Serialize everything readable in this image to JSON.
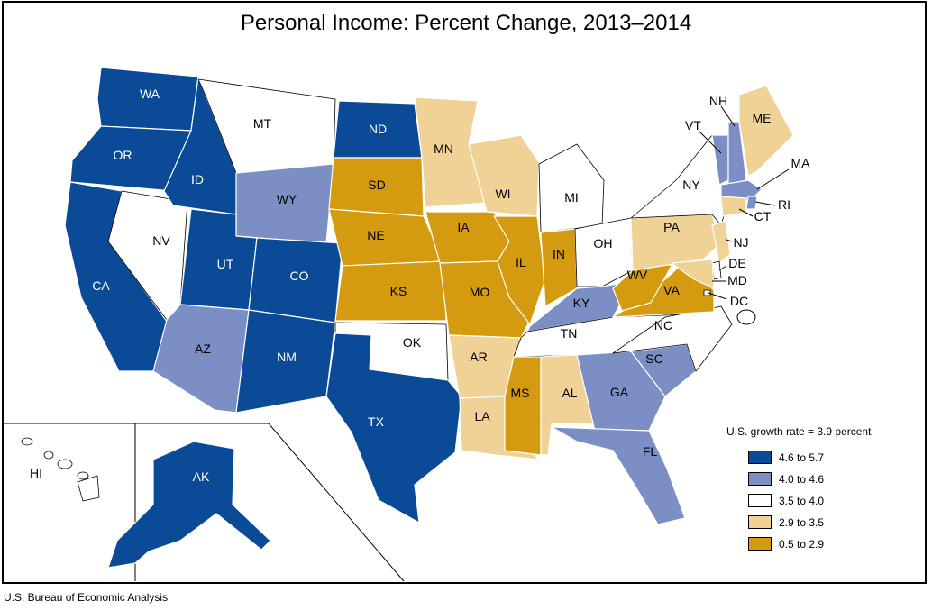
{
  "title": "Personal Income: Percent Change, 2013–2014",
  "source": "U.S. Bureau of Economic Analysis",
  "colors": {
    "c1": "#0a4a96",
    "c2": "#7b8fc4",
    "c3": "#ffffff",
    "c4": "#f0d296",
    "c5": "#d49a10",
    "border": "#ffffff",
    "outline": "#000000"
  },
  "legend": {
    "title": "U.S. growth rate = 3.9 percent",
    "items": [
      {
        "label": "4.6 to 5.7",
        "color": "#0a4a96"
      },
      {
        "label": "4.0 to 4.6",
        "color": "#7b8fc4"
      },
      {
        "label": "3.5 to 4.0",
        "color": "#ffffff"
      },
      {
        "label": "2.9 to 3.5",
        "color": "#f0d296"
      },
      {
        "label": "0.5 to 2.9",
        "color": "#d49a10"
      }
    ]
  },
  "states": {
    "WA": {
      "label": "WA",
      "class": "4.6 to 5.7"
    },
    "OR": {
      "label": "OR",
      "class": "4.6 to 5.7"
    },
    "CA": {
      "label": "CA",
      "class": "4.6 to 5.7"
    },
    "ID": {
      "label": "ID",
      "class": "4.6 to 5.7"
    },
    "NV": {
      "label": "NV",
      "class": "3.5 to 4.0"
    },
    "MT": {
      "label": "MT",
      "class": "3.5 to 4.0"
    },
    "WY": {
      "label": "WY",
      "class": "4.0 to 4.6"
    },
    "UT": {
      "label": "UT",
      "class": "4.6 to 5.7"
    },
    "CO": {
      "label": "CO",
      "class": "4.6 to 5.7"
    },
    "AZ": {
      "label": "AZ",
      "class": "4.0 to 4.6"
    },
    "NM": {
      "label": "NM",
      "class": "4.6 to 5.7"
    },
    "ND": {
      "label": "ND",
      "class": "4.6 to 5.7"
    },
    "SD": {
      "label": "SD",
      "class": "0.5 to 2.9"
    },
    "NE": {
      "label": "NE",
      "class": "0.5 to 2.9"
    },
    "KS": {
      "label": "KS",
      "class": "0.5 to 2.9"
    },
    "OK": {
      "label": "OK",
      "class": "3.5 to 4.0"
    },
    "TX": {
      "label": "TX",
      "class": "4.6 to 5.7"
    },
    "MN": {
      "label": "MN",
      "class": "2.9 to 3.5"
    },
    "IA": {
      "label": "IA",
      "class": "0.5 to 2.9"
    },
    "MO": {
      "label": "MO",
      "class": "0.5 to 2.9"
    },
    "AR": {
      "label": "AR",
      "class": "2.9 to 3.5"
    },
    "LA": {
      "label": "LA",
      "class": "2.9 to 3.5"
    },
    "WI": {
      "label": "WI",
      "class": "2.9 to 3.5"
    },
    "IL": {
      "label": "IL",
      "class": "0.5 to 2.9"
    },
    "MI": {
      "label": "MI",
      "class": "3.5 to 4.0"
    },
    "IN": {
      "label": "IN",
      "class": "0.5 to 2.9"
    },
    "OH": {
      "label": "OH",
      "class": "3.5 to 4.0"
    },
    "KY": {
      "label": "KY",
      "class": "4.0 to 4.6"
    },
    "TN": {
      "label": "TN",
      "class": "3.5 to 4.0"
    },
    "MS": {
      "label": "MS",
      "class": "0.5 to 2.9"
    },
    "AL": {
      "label": "AL",
      "class": "2.9 to 3.5"
    },
    "GA": {
      "label": "GA",
      "class": "4.0 to 4.6"
    },
    "FL": {
      "label": "FL",
      "class": "4.0 to 4.6"
    },
    "SC": {
      "label": "SC",
      "class": "4.0 to 4.6"
    },
    "NC": {
      "label": "NC",
      "class": "3.5 to 4.0"
    },
    "VA": {
      "label": "VA",
      "class": "0.5 to 2.9"
    },
    "WV": {
      "label": "WV",
      "class": "0.5 to 2.9"
    },
    "PA": {
      "label": "PA",
      "class": "2.9 to 3.5"
    },
    "NY": {
      "label": "NY",
      "class": "3.5 to 4.0"
    },
    "VT": {
      "label": "VT",
      "class": "4.0 to 4.6"
    },
    "NH": {
      "label": "NH",
      "class": "4.0 to 4.6"
    },
    "ME": {
      "label": "ME",
      "class": "2.9 to 3.5"
    },
    "MA": {
      "label": "MA",
      "class": "4.0 to 4.6"
    },
    "RI": {
      "label": "RI",
      "class": "4.0 to 4.6"
    },
    "CT": {
      "label": "CT",
      "class": "2.9 to 3.5"
    },
    "NJ": {
      "label": "NJ",
      "class": "2.9 to 3.5"
    },
    "DE": {
      "label": "DE",
      "class": "3.5 to 4.0"
    },
    "MD": {
      "label": "MD",
      "class": "2.9 to 3.5"
    },
    "DC": {
      "label": "DC",
      "class": "3.5 to 4.0"
    },
    "AK": {
      "label": "AK",
      "class": "4.6 to 5.7"
    },
    "HI": {
      "label": "HI",
      "class": "3.5 to 4.0"
    }
  }
}
